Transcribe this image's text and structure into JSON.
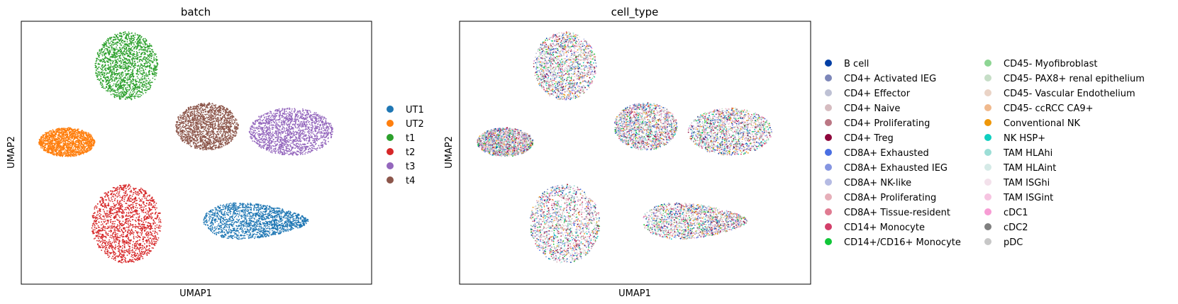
{
  "chart_data": [
    {
      "type": "scatter",
      "title": "batch",
      "xlabel": "UMAP1",
      "ylabel": "UMAP2",
      "grid": false,
      "legend_placement": "right",
      "series": [
        {
          "name": "UT1",
          "color": "#1f77b4",
          "cluster": {
            "cx": 0.67,
            "cy": 0.24,
            "rx": 0.15,
            "ry": 0.09,
            "shape": "wedge"
          }
        },
        {
          "name": "UT2",
          "color": "#ff7f0e",
          "cluster": {
            "cx": 0.13,
            "cy": 0.54,
            "rx": 0.08,
            "ry": 0.055,
            "shape": "blob"
          }
        },
        {
          "name": "t1",
          "color": "#2ca02c",
          "cluster": {
            "cx": 0.3,
            "cy": 0.83,
            "rx": 0.09,
            "ry": 0.13,
            "shape": "blob"
          }
        },
        {
          "name": "t2",
          "color": "#d62728",
          "cluster": {
            "cx": 0.3,
            "cy": 0.23,
            "rx": 0.1,
            "ry": 0.15,
            "shape": "blob"
          }
        },
        {
          "name": "t3",
          "color": "#9467bd",
          "cluster": {
            "cx": 0.77,
            "cy": 0.58,
            "rx": 0.12,
            "ry": 0.09,
            "shape": "blob"
          }
        },
        {
          "name": "t4",
          "color": "#8c564b",
          "cluster": {
            "cx": 0.53,
            "cy": 0.6,
            "rx": 0.09,
            "ry": 0.09,
            "shape": "blob"
          }
        }
      ]
    },
    {
      "type": "scatter",
      "title": "cell_type",
      "xlabel": "UMAP1",
      "ylabel": "UMAP2",
      "grid": false,
      "legend_placement": "right",
      "series": [
        {
          "name": "B cell",
          "color": "#023fa5"
        },
        {
          "name": "CD4+ Activated IEG",
          "color": "#7d87b9"
        },
        {
          "name": "CD4+ Effector",
          "color": "#bec1d4"
        },
        {
          "name": "CD4+ Naive",
          "color": "#d6bcc0"
        },
        {
          "name": "CD4+ Proliferating",
          "color": "#bb7784"
        },
        {
          "name": "CD4+ Treg",
          "color": "#8e063b"
        },
        {
          "name": "CD8A+ Exhausted",
          "color": "#4a6fe3"
        },
        {
          "name": "CD8A+ Exhausted IEG",
          "color": "#8595e1"
        },
        {
          "name": "CD8A+ NK-like",
          "color": "#b5bbe3"
        },
        {
          "name": "CD8A+ Proliferating",
          "color": "#e6afb9"
        },
        {
          "name": "CD8A+ Tissue-resident",
          "color": "#e07b91"
        },
        {
          "name": "CD14+ Monocyte",
          "color": "#d33f6a"
        },
        {
          "name": "CD14+/CD16+ Monocyte",
          "color": "#11c638"
        },
        {
          "name": "CD45- Myofibroblast",
          "color": "#8dd593"
        },
        {
          "name": "CD45- PAX8+ renal epithelium",
          "color": "#c6dec7"
        },
        {
          "name": "CD45- Vascular Endothelium",
          "color": "#ead3c6"
        },
        {
          "name": "CD45- ccRCC CA9+",
          "color": "#f0b98d"
        },
        {
          "name": "Conventional NK",
          "color": "#ef9708"
        },
        {
          "name": "NK HSP+",
          "color": "#0fcfc0"
        },
        {
          "name": "TAM HLAhi",
          "color": "#9cded6"
        },
        {
          "name": "TAM HLAint",
          "color": "#d5eae7"
        },
        {
          "name": "TAM ISGhi",
          "color": "#f3e1eb"
        },
        {
          "name": "TAM ISGint",
          "color": "#f6c4e1"
        },
        {
          "name": "cDC1",
          "color": "#f79cd4"
        },
        {
          "name": "cDC2",
          "color": "#7f7f7f"
        },
        {
          "name": "pDC",
          "color": "#c7c7c7"
        }
      ]
    }
  ]
}
